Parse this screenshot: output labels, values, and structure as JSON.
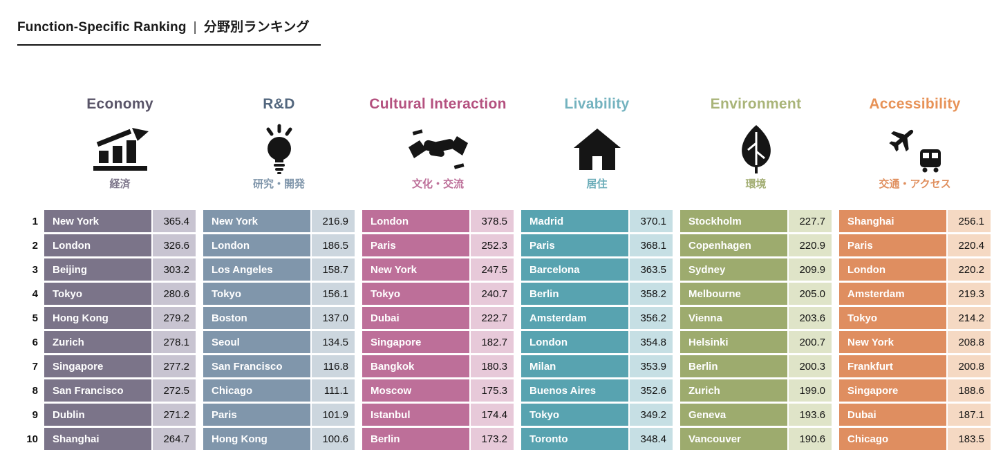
{
  "header": {
    "title_en": "Function-Specific Ranking",
    "separator": "|",
    "title_ja": "分野別ランキング"
  },
  "chart_data": {
    "type": "table",
    "title": "Function-Specific Ranking | 分野別ランキング",
    "ranks": [
      "1",
      "2",
      "3",
      "4",
      "5",
      "6",
      "7",
      "8",
      "9",
      "10"
    ],
    "categories": [
      {
        "name": "Economy",
        "subtitle": "経済",
        "icon": "bar-chart-rising-icon",
        "colors": {
          "header": "#595468",
          "subtitle": "#7b7489",
          "cell": "#7b7489",
          "score_bg": "#c8c4d1"
        },
        "rows": [
          {
            "city": "New York",
            "score": "365.4"
          },
          {
            "city": "London",
            "score": "326.6"
          },
          {
            "city": "Beijing",
            "score": "303.2"
          },
          {
            "city": "Tokyo",
            "score": "280.6"
          },
          {
            "city": "Hong Kong",
            "score": "279.2"
          },
          {
            "city": "Zurich",
            "score": "278.1"
          },
          {
            "city": "Singapore",
            "score": "277.2"
          },
          {
            "city": "San Francisco",
            "score": "272.5"
          },
          {
            "city": "Dublin",
            "score": "271.2"
          },
          {
            "city": "Shanghai",
            "score": "264.7"
          }
        ]
      },
      {
        "name": "R&D",
        "subtitle": "研究・開発",
        "icon": "lightbulb-icon",
        "colors": {
          "header": "#53677e",
          "subtitle": "#8096ab",
          "cell": "#8096ab",
          "score_bg": "#ccd6de"
        },
        "rows": [
          {
            "city": "New York",
            "score": "216.9"
          },
          {
            "city": "London",
            "score": "186.5"
          },
          {
            "city": "Los Angeles",
            "score": "158.7"
          },
          {
            "city": "Tokyo",
            "score": "156.1"
          },
          {
            "city": "Boston",
            "score": "137.0"
          },
          {
            "city": "Seoul",
            "score": "134.5"
          },
          {
            "city": "San Francisco",
            "score": "116.8"
          },
          {
            "city": "Chicago",
            "score": "111.1"
          },
          {
            "city": "Paris",
            "score": "101.9"
          },
          {
            "city": "Hong Kong",
            "score": "100.6"
          }
        ]
      },
      {
        "name": "Cultural Interaction",
        "subtitle": "文化・交流",
        "icon": "handshake-icon",
        "colors": {
          "header": "#b4517f",
          "subtitle": "#bd6f99",
          "cell": "#bd6f99",
          "score_bg": "#e7c9d9"
        },
        "rows": [
          {
            "city": "London",
            "score": "378.5"
          },
          {
            "city": "Paris",
            "score": "252.3"
          },
          {
            "city": "New York",
            "score": "247.5"
          },
          {
            "city": "Tokyo",
            "score": "240.7"
          },
          {
            "city": "Dubai",
            "score": "222.7"
          },
          {
            "city": "Singapore",
            "score": "182.7"
          },
          {
            "city": "Bangkok",
            "score": "180.3"
          },
          {
            "city": "Moscow",
            "score": "175.3"
          },
          {
            "city": "Istanbul",
            "score": "174.4"
          },
          {
            "city": "Berlin",
            "score": "173.2"
          }
        ]
      },
      {
        "name": "Livability",
        "subtitle": "居住",
        "icon": "house-icon",
        "colors": {
          "header": "#74b3bf",
          "subtitle": "#6badb9",
          "cell": "#58a3b0",
          "score_bg": "#c6dfe4"
        },
        "rows": [
          {
            "city": "Madrid",
            "score": "370.1"
          },
          {
            "city": "Paris",
            "score": "368.1"
          },
          {
            "city": "Barcelona",
            "score": "363.5"
          },
          {
            "city": "Berlin",
            "score": "358.2"
          },
          {
            "city": "Amsterdam",
            "score": "356.2"
          },
          {
            "city": "London",
            "score": "354.8"
          },
          {
            "city": "Milan",
            "score": "353.9"
          },
          {
            "city": "Buenos Aires",
            "score": "352.6"
          },
          {
            "city": "Tokyo",
            "score": "349.2"
          },
          {
            "city": "Toronto",
            "score": "348.4"
          }
        ]
      },
      {
        "name": "Environment",
        "subtitle": "環境",
        "icon": "leaf-icon",
        "colors": {
          "header": "#a9b478",
          "subtitle": "#a3ae73",
          "cell": "#9dab6e",
          "score_bg": "#dfe4c8"
        },
        "rows": [
          {
            "city": "Stockholm",
            "score": "227.7"
          },
          {
            "city": "Copenhagen",
            "score": "220.9"
          },
          {
            "city": "Sydney",
            "score": "209.9"
          },
          {
            "city": "Melbourne",
            "score": "205.0"
          },
          {
            "city": "Vienna",
            "score": "203.6"
          },
          {
            "city": "Helsinki",
            "score": "200.7"
          },
          {
            "city": "Berlin",
            "score": "200.3"
          },
          {
            "city": "Zurich",
            "score": "199.0"
          },
          {
            "city": "Geneva",
            "score": "193.6"
          },
          {
            "city": "Vancouver",
            "score": "190.6"
          }
        ]
      },
      {
        "name": "Accessibility",
        "subtitle": "交通・アクセス",
        "icon": "airplane-train-icon",
        "colors": {
          "header": "#e79257",
          "subtitle": "#e08f5e",
          "cell": "#df8e60",
          "score_bg": "#f5d9c3"
        },
        "rows": [
          {
            "city": "Shanghai",
            "score": "256.1"
          },
          {
            "city": "Paris",
            "score": "220.4"
          },
          {
            "city": "London",
            "score": "220.2"
          },
          {
            "city": "Amsterdam",
            "score": "219.3"
          },
          {
            "city": "Tokyo",
            "score": "214.2"
          },
          {
            "city": "New York",
            "score": "208.8"
          },
          {
            "city": "Frankfurt",
            "score": "200.8"
          },
          {
            "city": "Singapore",
            "score": "188.6"
          },
          {
            "city": "Dubai",
            "score": "187.1"
          },
          {
            "city": "Chicago",
            "score": "183.5"
          }
        ]
      }
    ]
  }
}
